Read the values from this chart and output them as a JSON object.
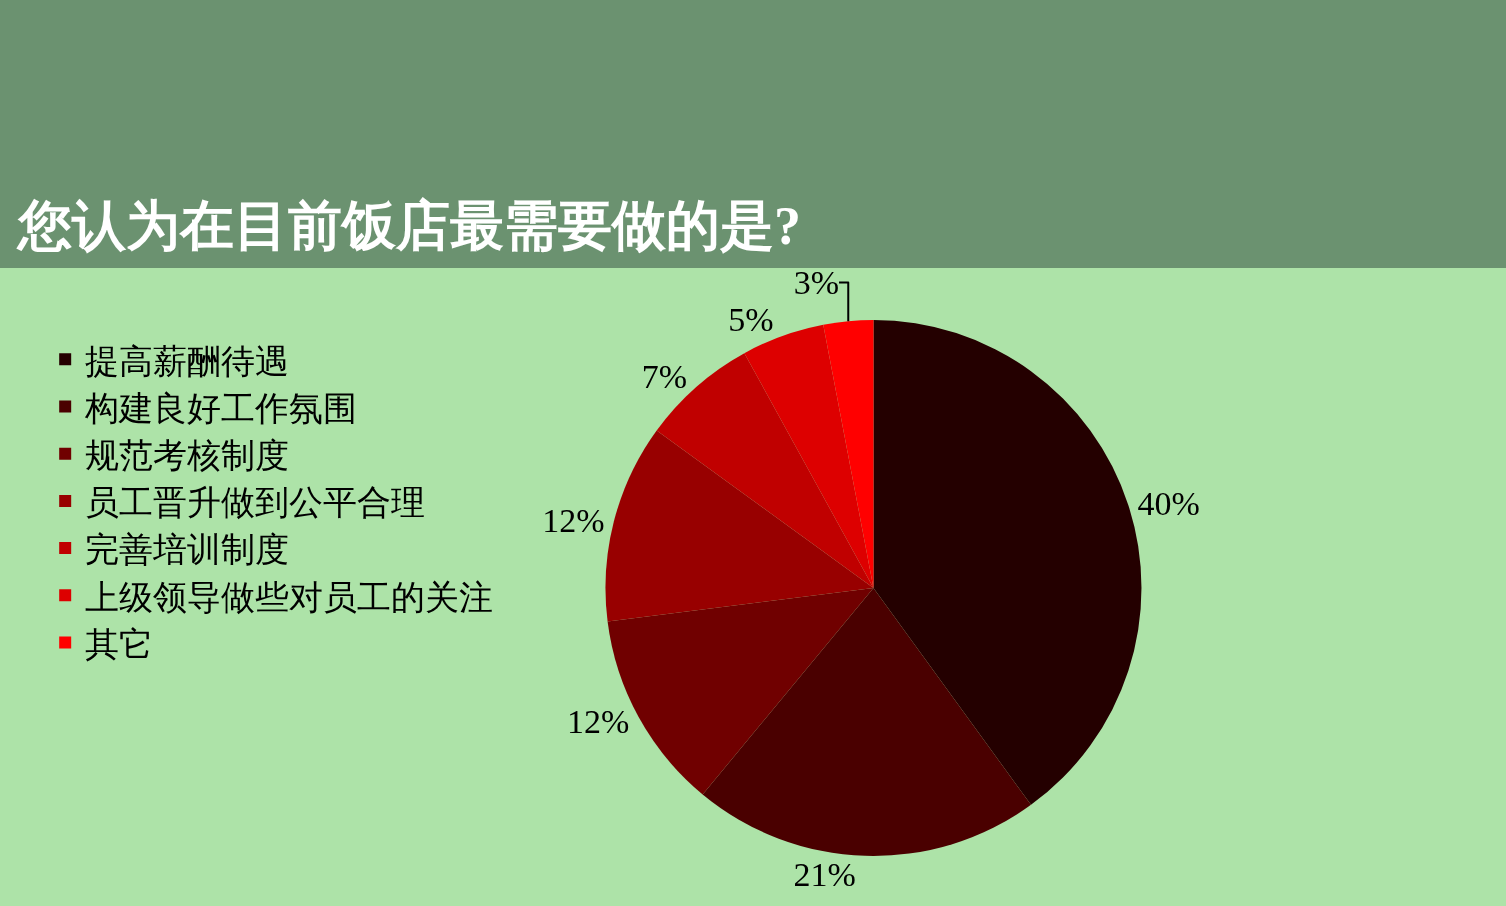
{
  "chart_data": {
    "type": "pie",
    "title": "您认为在目前饭店最需要做的是?",
    "categories": [
      "提高薪酬待遇",
      "构建良好工作氛围",
      "规范考核制度",
      "员工晋升做到公平合理",
      "完善培训制度",
      "上级领导做些对员工的关注",
      "其它"
    ],
    "values": [
      40,
      21,
      12,
      12,
      7,
      5,
      3
    ],
    "value_labels": [
      "40%",
      "21%",
      "12%",
      "12%",
      "7%",
      "5%",
      "3%"
    ],
    "colors": [
      "#240000",
      "#4a0000",
      "#700000",
      "#980000",
      "#c00000",
      "#dd0000",
      "#ff0000"
    ],
    "legend": "left"
  }
}
